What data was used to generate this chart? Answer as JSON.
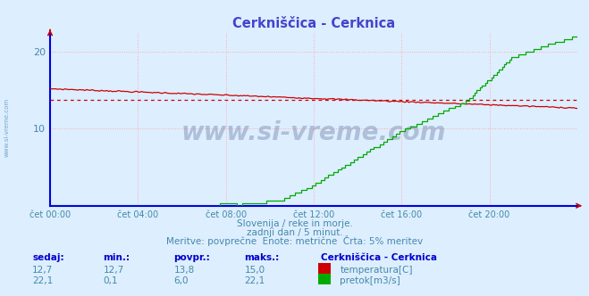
{
  "title": "Cerkniščica - Cerknica",
  "title_color": "#4444cc",
  "bg_color": "#ddeeff",
  "plot_bg_color": "#ddeeff",
  "grid_color": "#ffaaaa",
  "axis_color": "#0000dd",
  "tick_label_color": "#4488aa",
  "temp_color": "#cc0000",
  "flow_color": "#00aa00",
  "avg_temp_value": 13.8,
  "y_min": 0,
  "y_max": 22,
  "y_ticks": [
    10,
    20
  ],
  "x_ticks": [
    0,
    240,
    480,
    720,
    960,
    1200,
    1440
  ],
  "x_tick_labels": [
    "čet 00:00",
    "čet 04:00",
    "čet 08:00",
    "čet 12:00",
    "čet 16:00",
    "čet 20:00",
    ""
  ],
  "subtitle1": "Slovenija / reke in morje.",
  "subtitle2": "zadnji dan / 5 minut.",
  "subtitle3": "Meritve: povprečne  Enote: metrične  Črta: 5% meritev",
  "subtitle_color": "#4488aa",
  "legend_title": "Cerkniščica - Cerknica",
  "legend_label1": "temperatura[C]",
  "legend_label2": "pretok[m3/s]",
  "legend_title_color": "#0000cc",
  "stats_label_color": "#0000cc",
  "stats_value_color": "#4488aa",
  "col_labels": [
    "sedaj:",
    "min.:",
    "povpr.:",
    "maks.:"
  ],
  "stats_temp": [
    "12,7",
    "12,7",
    "13,8",
    "15,0"
  ],
  "stats_flow": [
    "22,1",
    "0,1",
    "6,0",
    "22,1"
  ],
  "watermark": "www.si-vreme.com",
  "watermark_color": "#8899bb",
  "side_text_color": "#6699bb"
}
